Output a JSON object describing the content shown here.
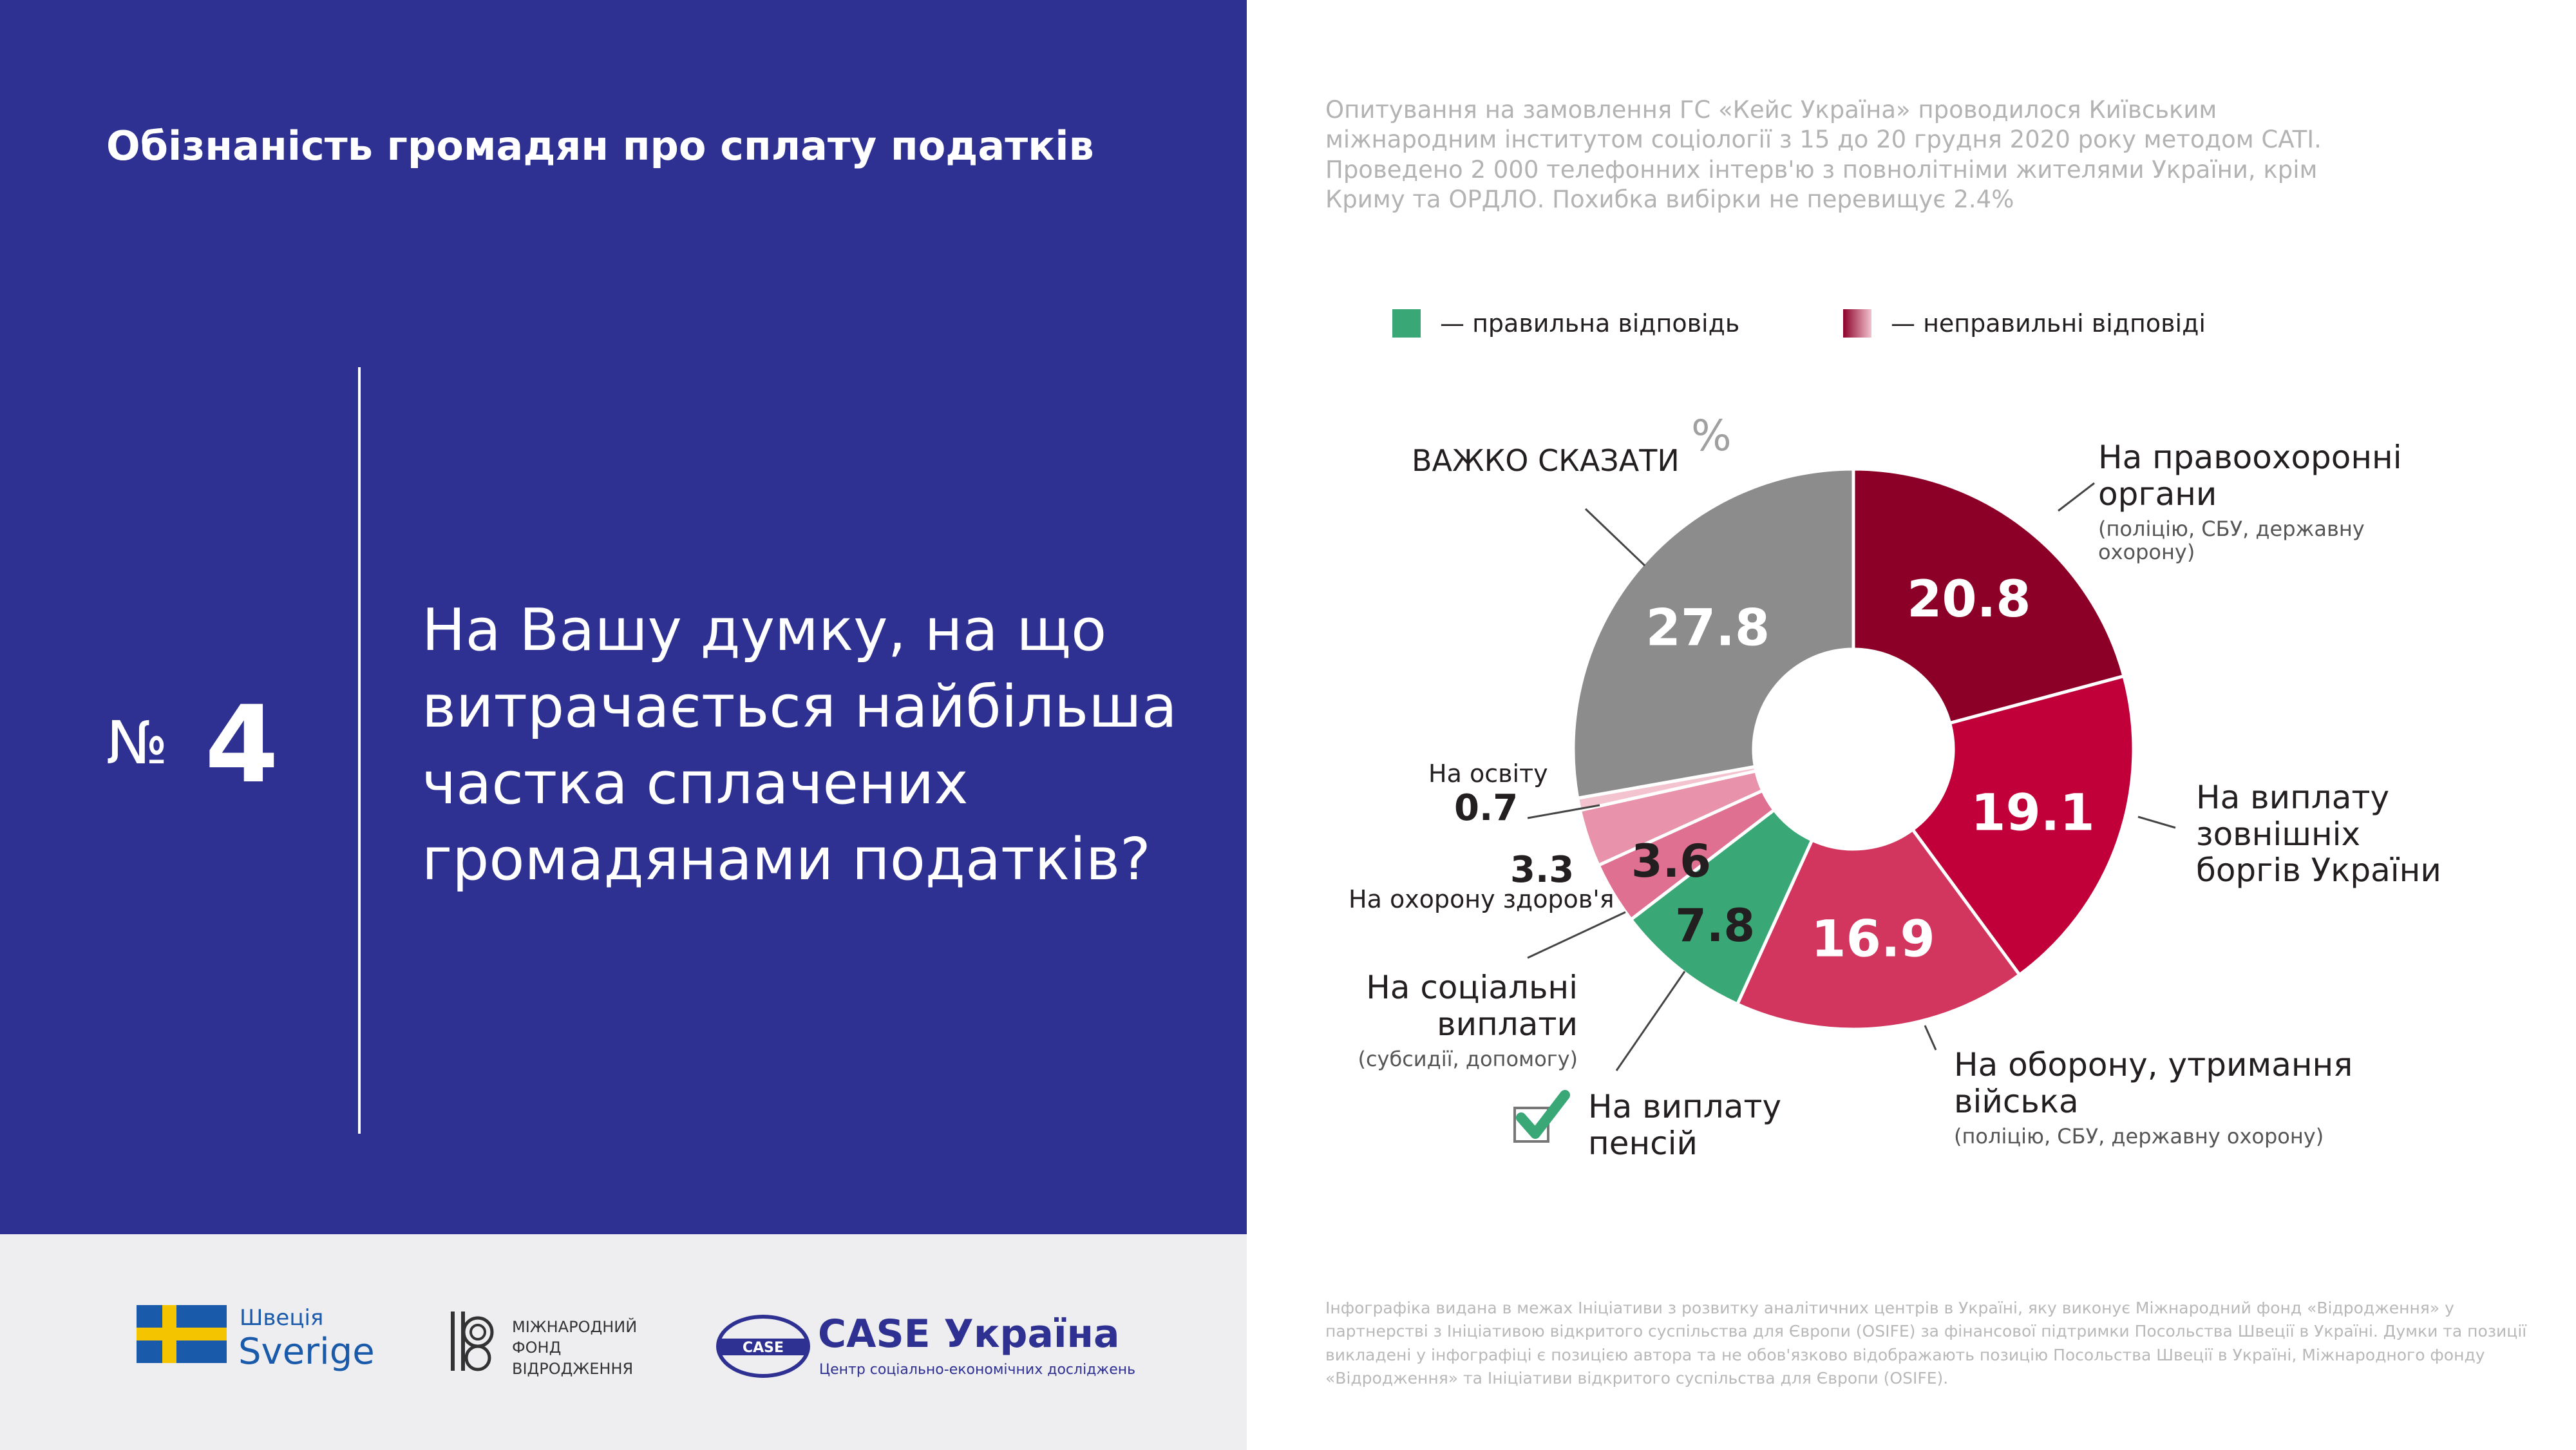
{
  "header": {
    "title": "Обізнаність громадян про сплату податків",
    "number_prefix": "№",
    "number": "4",
    "question": "На Вашу думку, на що витрачається найбільша частка сплачених громадянами податків?"
  },
  "survey_note": "Опитування на замовлення ГС «Кейс Україна» проводилося Київським міжнародним інститутом соціології з 15 до 20 грудня 2020 року методом CATI. Проведено 2 000 телефонних інтерв'ю з повнолітніми жителями України, крім Криму та ОРДЛО. Похибка вибірки не перевищує 2.4%",
  "legend": {
    "correct": "— правильна відповідь",
    "incorrect": "— неправильні відповіді"
  },
  "colors": {
    "panel": "#2e3192",
    "correct": "#3aa876",
    "hard_to_say": "#8c8c8c"
  },
  "chart_data": {
    "type": "pie",
    "unit": "%",
    "slices": [
      {
        "label": "На правоохоронні органи",
        "sublabel": "(поліцію, СБУ, державну охорону)",
        "value": 20.8,
        "color": "#8c0028"
      },
      {
        "label": "На виплату зовнішніх боргів України",
        "sublabel": "",
        "value": 19.1,
        "color": "#c1003a"
      },
      {
        "label": "На оборону, утримання війська",
        "sublabel": "(поліцію, СБУ, державну охорону)",
        "value": 16.9,
        "color": "#d2355e"
      },
      {
        "label": "На виплату пенсій",
        "sublabel": "",
        "value": 7.8,
        "color": "#3aa876",
        "correct": true
      },
      {
        "label": "На соціальні виплати",
        "sublabel": "(субсидії, допомогу)",
        "value": 3.6,
        "color": "#e07092"
      },
      {
        "label": "На охорону здоров'я",
        "sublabel": "",
        "value": 3.3,
        "color": "#e892ab"
      },
      {
        "label": "На освіту",
        "sublabel": "",
        "value": 0.7,
        "color": "#f3c3d0"
      },
      {
        "label": "ВАЖКО СКАЗАТИ",
        "sublabel": "",
        "value": 27.8,
        "color": "#8c8c8c"
      }
    ]
  },
  "labels": {
    "law": "На правоохоронні органи",
    "law_sub": "(поліцію, СБУ, державну охорону)",
    "debt": "На виплату зовнішніх боргів України",
    "defense": "На оборону, утримання війська",
    "defense_sub": "(поліцію, СБУ, державну охорону)",
    "pension": "На виплату пенсій",
    "social": "На соціальні виплати",
    "social_sub": "(субсидії, допомогу)",
    "health": "На охорону здоров'я",
    "education": "На освіту",
    "hard": "ВАЖКО СКАЗАТИ",
    "percent": "%"
  },
  "values_text": {
    "law": "20.8",
    "debt": "19.1",
    "defense": "16.9",
    "pension": "7.8",
    "social": "3.6",
    "health": "3.3",
    "education": "0.7",
    "hard": "27.8"
  },
  "logos": {
    "sweden_top": "Швеція",
    "sweden_bottom": "Sverige",
    "irf": "МІЖНАРОДНИЙ ФОНД ВІДРОДЖЕННЯ",
    "case_title": "CASE Україна",
    "case_sub": "Центр соціально-економічних досліджень",
    "case_badge": "CASE"
  },
  "footer_note": "Інфографіка видана в межах Ініціативи з розвитку аналітичних центрів в Україні, яку виконує Міжнародний фонд «Відродження» у партнерстві з Ініціативою відкритого суспільства для Європи (OSIFE) за фінансової підтримки Посольства Швеції в Україні. Думки та позиції викладені у інфографіці є позицією автора та не обов'язково відображають позицію Посольства Швеції в Україні, Міжнародного фонду «Відродження» та Ініціативи відкритого суспільства для Європи (OSIFE)."
}
